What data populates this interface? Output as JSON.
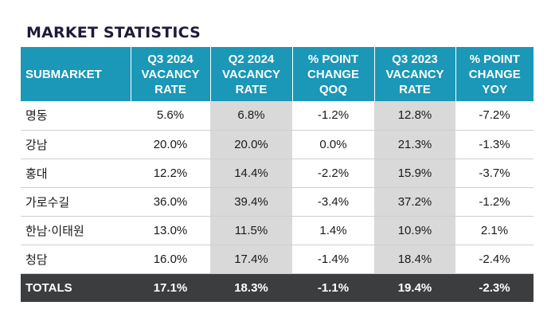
{
  "title": "MARKET STATISTICS",
  "headers": [
    [
      "SUBMARKET"
    ],
    [
      "Q3 2024",
      "VACANCY",
      "RATE"
    ],
    [
      "Q2 2024",
      "VACANCY",
      "RATE"
    ],
    [
      "% POINT",
      "CHANGE",
      "QOQ"
    ],
    [
      "Q3 2023",
      "VACANCY",
      "RATE"
    ],
    [
      "% POINT",
      "CHANGE",
      "YOY"
    ]
  ],
  "rows": [
    [
      "명동",
      "5.6%",
      "6.8%",
      "-1.2%",
      "12.8%",
      "-7.2%"
    ],
    [
      "강남",
      "20.0%",
      "20.0%",
      "0.0%",
      "21.3%",
      "-1.3%"
    ],
    [
      "홍대",
      "12.2%",
      "14.4%",
      "-2.2%",
      "15.9%",
      "-3.7%"
    ],
    [
      "가로수길",
      "36.0%",
      "39.4%",
      "-3.4%",
      "37.2%",
      "-1.2%"
    ],
    [
      "한남·이태원",
      "13.0%",
      "11.5%",
      "1.4%",
      "10.9%",
      "2.1%"
    ],
    [
      "청담",
      "16.0%",
      "17.4%",
      "-1.4%",
      "18.4%",
      "-2.4%"
    ]
  ],
  "totals": [
    "TOTALS",
    "17.1%",
    "18.3%",
    "-1.1%",
    "19.4%",
    "-2.3%"
  ],
  "colors": {
    "header_bg": "#1b97b7",
    "shaded_column_bg": "#d9d9d9",
    "totals_bg": "#3b3d3f",
    "title_text": "#1f1b3a"
  }
}
